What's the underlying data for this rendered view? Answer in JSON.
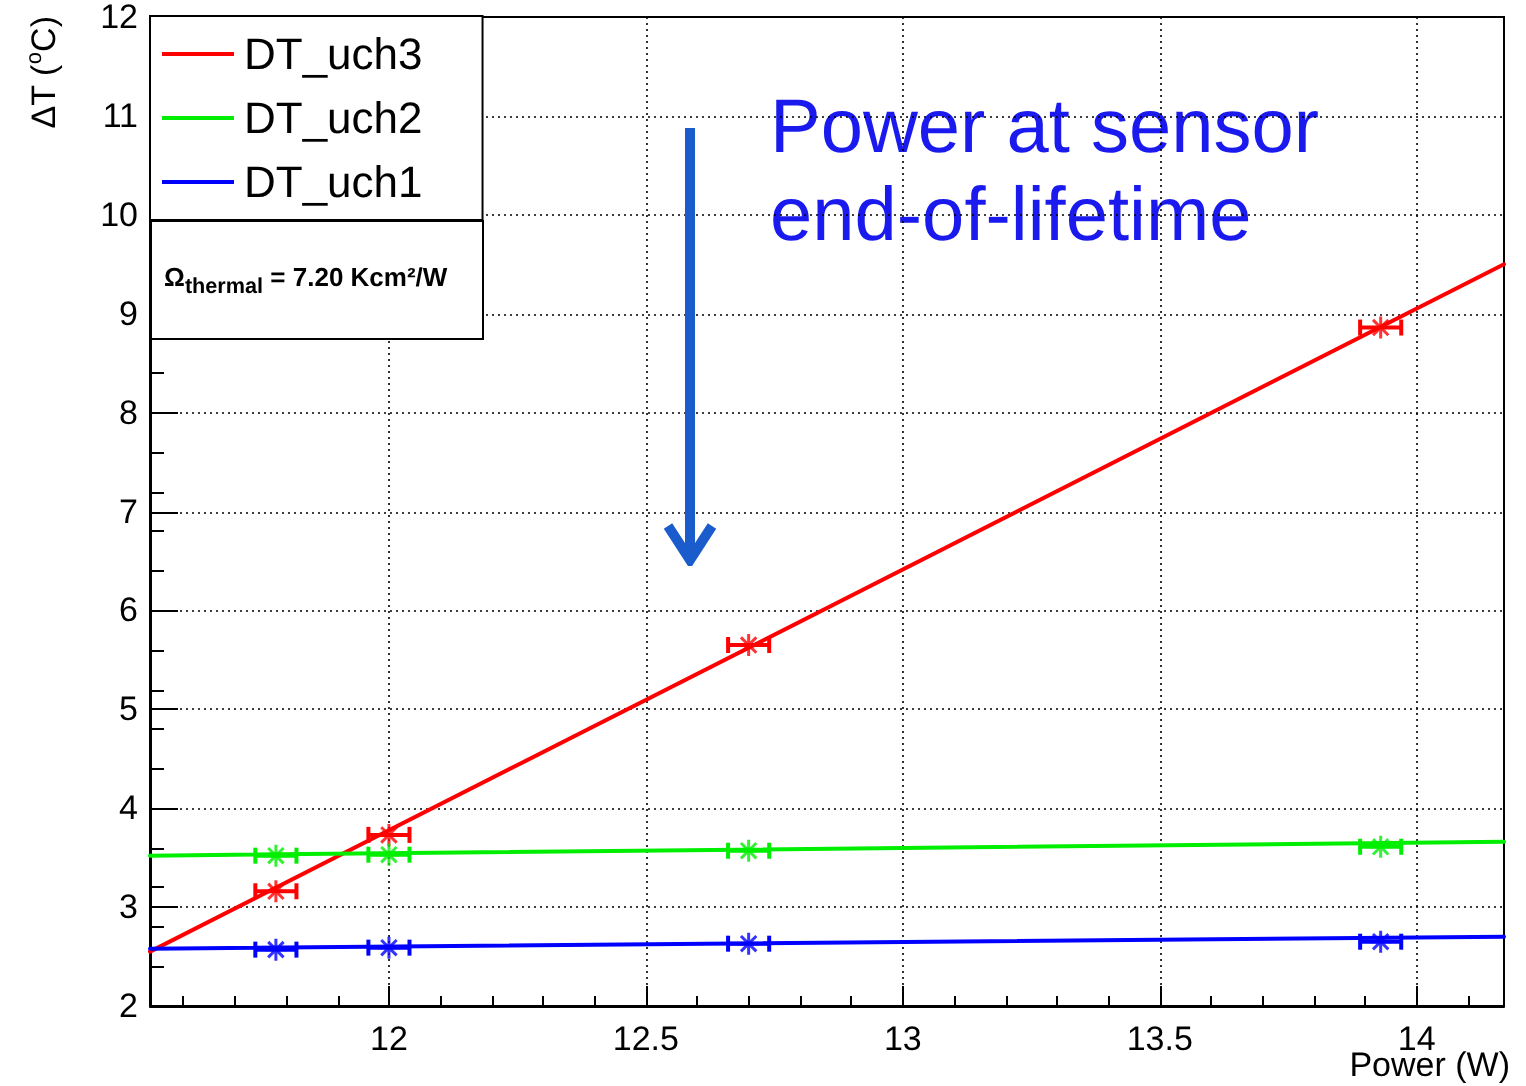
{
  "chart_data": {
    "type": "line",
    "xlabel": "Power (W)",
    "ylabel": "ΔT ($^{o}$C)",
    "xlim": [
      11.535,
      14.17
    ],
    "xticks": [
      12,
      12.5,
      13,
      13.5,
      14
    ],
    "ylim": [
      2,
      12
    ],
    "yticks": [
      2,
      3,
      4,
      5,
      6,
      7,
      8,
      9,
      10,
      11,
      12
    ],
    "grid": true,
    "legend": "top left",
    "line_style": "solid",
    "series": [
      {
        "name": "DT_uch3",
        "color": "#ff0000",
        "x": [
          11.535,
          14.17
        ],
        "values": [
          2.55,
          9.5
        ]
      },
      {
        "name": "DT_uch2",
        "color": "#00ee00",
        "x": [
          11.535,
          14.17
        ],
        "values": [
          3.52,
          3.66
        ]
      },
      {
        "name": "DT_uch1",
        "color": "#0000ff",
        "x": [
          11.535,
          14.17
        ],
        "values": [
          2.58,
          2.7
        ]
      },
      {
        "color": "#ff0000",
        "type": "scatter",
        "marker": "cross",
        "x": [
          11.78,
          12.0,
          12.7,
          13.93
        ],
        "values": [
          3.16,
          3.73,
          5.65,
          8.86
        ],
        "xerrors": [
          0.04,
          0.04,
          0.04,
          0.04
        ]
      },
      {
        "color": "#00ee00",
        "type": "scatter",
        "marker": "cross",
        "x": [
          11.78,
          12.0,
          12.7,
          13.93
        ],
        "values": [
          3.52,
          3.53,
          3.57,
          3.61
        ],
        "xerrors": [
          0.04,
          0.04,
          0.04,
          0.04
        ]
      },
      {
        "color": "#0000ff",
        "type": "scatter",
        "marker": "cross",
        "x": [
          11.78,
          12.0,
          12.7,
          13.93
        ],
        "values": [
          2.57,
          2.59,
          2.63,
          2.65
        ],
        "xerrors": [
          0.04,
          0.04,
          0.04,
          0.04
        ]
      }
    ],
    "annotations": [
      "Power at sensor end-of-lifetime",
      "Ω$_{thermal}$ = 7.20 Kcm²/W"
    ]
  }
}
